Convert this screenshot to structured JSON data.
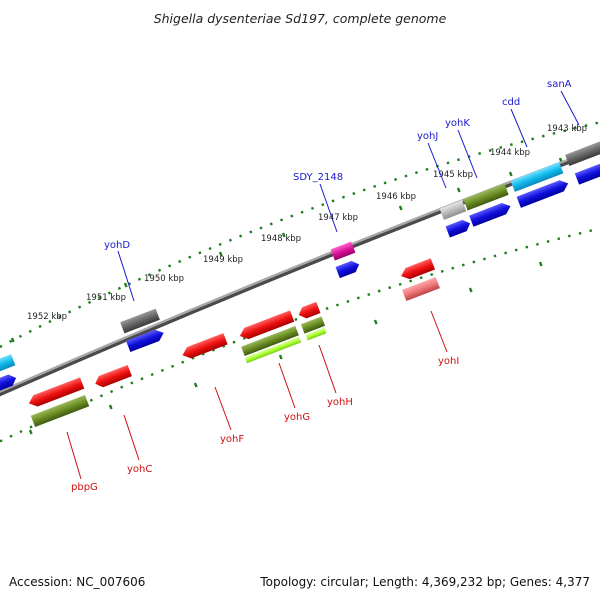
{
  "title": "Shigella dysenteriae Sd197, complete genome",
  "footer": {
    "accession": "Accession: NC_007606",
    "topology": "Topology: circular; Length: 4,369,232 bp; Genes: 4,377"
  },
  "kbp_labels": [
    "1943 kbp",
    "1944 kbp",
    "1945 kbp",
    "1946 kbp",
    "1947 kbp",
    "1948 kbp",
    "1949 kbp",
    "1950 kbp",
    "1951 kbp",
    "1952 kbp"
  ],
  "gene_labels_top": [
    "sanA",
    "cdd",
    "yohK",
    "yohJ",
    "SDY_2148",
    "yohD"
  ],
  "gene_labels_bottom": [
    "yohI",
    "yohH",
    "yohG",
    "yohF",
    "yohC",
    "pbpG"
  ],
  "colors": {
    "backbone": "#8a8a8a",
    "scale_ticks": "#1e7d1e",
    "label_top": "#1a1ad0",
    "label_bottom": "#cc1111",
    "red": "#ee1111",
    "blue": "#1010dd",
    "olive": "#6b8e23",
    "cyan": "#11bbee",
    "gray": "#666666",
    "lightgray": "#bbbbbb",
    "magenta": "#dd1199",
    "lime": "#aaff33",
    "pink": "#ee7777"
  }
}
